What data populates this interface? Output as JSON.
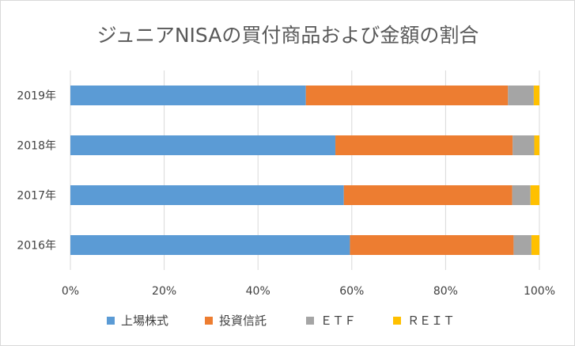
{
  "chart_data": {
    "type": "bar",
    "orientation": "horizontal",
    "stacked": "percent",
    "title": "ジュニアNISAの買付商品および金額の割合",
    "categories": [
      "2019年",
      "2018年",
      "2017年",
      "2016年"
    ],
    "series": [
      {
        "name": "上場株式",
        "color": "#5b9bd5",
        "values": [
          50.2,
          56.5,
          58.3,
          59.6
        ]
      },
      {
        "name": "投資信託",
        "color": "#ed7d31",
        "values": [
          43.1,
          37.8,
          35.9,
          34.9
        ]
      },
      {
        "name": "ＥＴＦ",
        "color": "#a5a5a5",
        "values": [
          5.5,
          4.6,
          3.9,
          3.8
        ]
      },
      {
        "name": "ＲＥＩＴ",
        "color": "#ffc000",
        "values": [
          1.2,
          1.1,
          1.9,
          1.7
        ]
      }
    ],
    "xlim": [
      0,
      100
    ],
    "xticks": [
      0,
      20,
      40,
      60,
      80,
      100
    ],
    "xtick_labels": [
      "0%",
      "20%",
      "40%",
      "60%",
      "80%",
      "100%"
    ],
    "xlabel": "",
    "ylabel": "",
    "grid": true,
    "legend_position": "bottom"
  }
}
